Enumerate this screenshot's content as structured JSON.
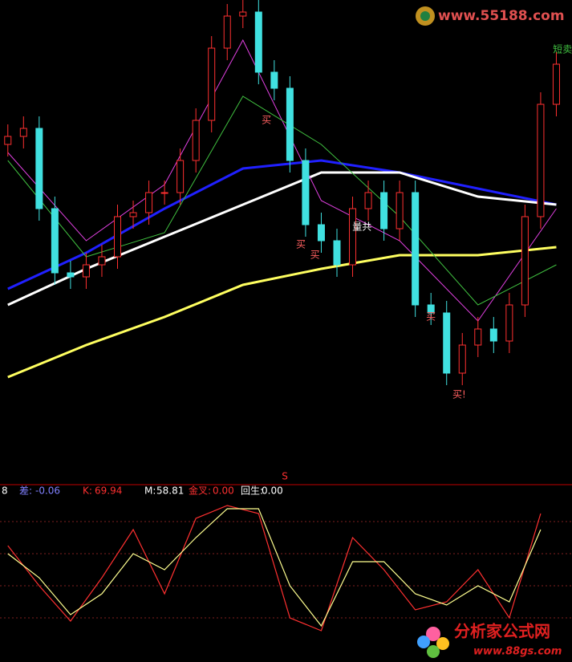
{
  "chart_data": [
    {
      "type": "candlestick",
      "ylim": [
        0,
        600
      ],
      "xlim": [
        -0.5,
        36
      ],
      "up_color": "#ff3030",
      "down_color": "#40e0e0",
      "x": [
        0,
        1,
        2,
        3,
        4,
        5,
        6,
        7,
        8,
        9,
        10,
        11,
        12,
        13,
        14,
        15,
        16,
        17,
        18,
        19,
        20,
        21,
        22,
        23,
        24,
        25,
        26,
        27,
        28,
        29,
        30,
        31,
        32,
        33,
        34,
        35
      ],
      "open": [
        420,
        430,
        440,
        340,
        260,
        255,
        270,
        280,
        330,
        335,
        360,
        360,
        400,
        450,
        540,
        580,
        585,
        510,
        490,
        400,
        320,
        300,
        270,
        340,
        360,
        315,
        360,
        220,
        210,
        135,
        170,
        190,
        175,
        220,
        330,
        470
      ],
      "close": [
        430,
        440,
        340,
        260,
        255,
        270,
        280,
        330,
        335,
        360,
        360,
        400,
        450,
        540,
        580,
        585,
        510,
        490,
        400,
        320,
        300,
        270,
        340,
        360,
        315,
        360,
        220,
        210,
        135,
        170,
        190,
        175,
        220,
        330,
        470,
        520
      ],
      "high": [
        445,
        455,
        455,
        355,
        275,
        285,
        295,
        345,
        350,
        375,
        375,
        415,
        465,
        555,
        595,
        600,
        600,
        525,
        505,
        415,
        335,
        315,
        355,
        375,
        375,
        375,
        375,
        235,
        225,
        185,
        205,
        205,
        235,
        345,
        485,
        535
      ],
      "low": [
        405,
        415,
        325,
        245,
        240,
        240,
        255,
        265,
        315,
        320,
        345,
        345,
        385,
        435,
        525,
        565,
        495,
        475,
        385,
        305,
        285,
        255,
        255,
        325,
        300,
        300,
        205,
        195,
        120,
        120,
        155,
        160,
        160,
        205,
        315,
        455
      ],
      "series": [
        {
          "color": "#2020ff",
          "width": 3,
          "x": [
            0,
            5,
            10,
            15,
            20,
            25,
            30,
            35
          ],
          "values": [
            240,
            285,
            340,
            390,
            400,
            385,
            365,
            345
          ]
        },
        {
          "color": "#ffffff",
          "width": 3,
          "x": [
            0,
            5,
            10,
            15,
            20,
            25,
            30,
            35
          ],
          "values": [
            220,
            265,
            305,
            345,
            385,
            385,
            355,
            345
          ]
        },
        {
          "color": "#ffff60",
          "width": 3,
          "x": [
            0,
            5,
            10,
            15,
            20,
            25,
            30,
            35
          ],
          "values": [
            130,
            170,
            205,
            245,
            265,
            282,
            282,
            292
          ]
        },
        {
          "color": "#e040e0",
          "width": 1,
          "x": [
            0,
            5,
            10,
            15,
            20,
            25,
            30,
            35
          ],
          "values": [
            410,
            300,
            370,
            550,
            350,
            300,
            200,
            340
          ]
        },
        {
          "color": "#40c040",
          "width": 1,
          "x": [
            0,
            5,
            10,
            15,
            20,
            25,
            30,
            35
          ],
          "values": [
            400,
            280,
            310,
            480,
            420,
            330,
            220,
            270
          ]
        }
      ],
      "annotations": [
        {
          "text": "买",
          "x": 16.5,
          "y": 450,
          "color": "#ff6060"
        },
        {
          "text": "买",
          "x": 18.7,
          "y": 295,
          "color": "#ff6060"
        },
        {
          "text": "买",
          "x": 19.6,
          "y": 282,
          "color": "#ff6060"
        },
        {
          "text": "量共",
          "x": 22.6,
          "y": 317,
          "color": "#ffffff"
        },
        {
          "text": "买",
          "x": 27,
          "y": 205,
          "color": "#ff6060"
        },
        {
          "text": "买!",
          "x": 28.8,
          "y": 108,
          "color": "#ff6060"
        },
        {
          "text": "短卖",
          "x": 35.4,
          "y": 538,
          "color": "#40c040"
        }
      ],
      "marker": "S"
    },
    {
      "type": "line",
      "ylim": [
        0,
        100
      ],
      "xlim": [
        -0.5,
        36
      ],
      "x": [
        0,
        2,
        4,
        6,
        8,
        10,
        12,
        14,
        16,
        18,
        20,
        22,
        24,
        26,
        28,
        30,
        32,
        34
      ],
      "series": [
        {
          "color": "#ff3030",
          "values": [
            65,
            40,
            18,
            45,
            75,
            35,
            82,
            90,
            85,
            20,
            12,
            70,
            50,
            25,
            30,
            50,
            20,
            85
          ]
        },
        {
          "color": "#ffff90",
          "values": [
            60,
            45,
            22,
            35,
            60,
            50,
            70,
            88,
            88,
            40,
            15,
            55,
            55,
            35,
            28,
            40,
            30,
            75
          ]
        }
      ],
      "legend": [
        {
          "label": "8",
          "color": "#ffffff"
        },
        {
          "label": "差:",
          "value": -0.06,
          "color": "#8080ff"
        },
        {
          "label": "K:",
          "value": 69.94,
          "color": "#ff3030"
        },
        {
          "label": "M:",
          "value": 58.81,
          "color": "#ffffff"
        },
        {
          "label": "金叉:",
          "value": {
            "value": 0,
            "label": "0.00"
          },
          "color": "#ff3030"
        },
        {
          "label": "回生:",
          "value": {
            "value": 0,
            "label": "0.00"
          },
          "color": "#ffffff"
        }
      ]
    }
  ],
  "watermarks": {
    "top": "www.55188.com",
    "bottom_title": "分析家公式网",
    "bottom_url": "www.88gs.com"
  }
}
